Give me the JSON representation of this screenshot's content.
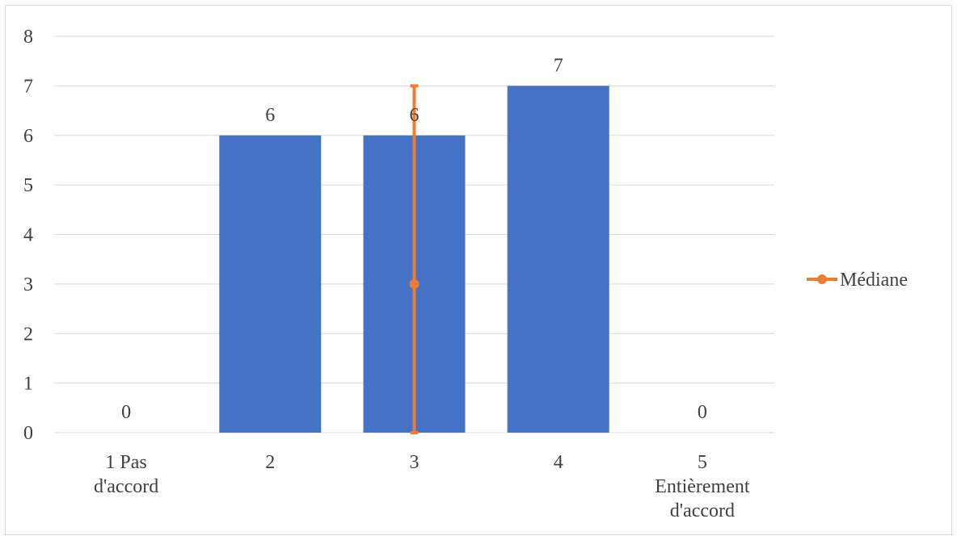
{
  "chart_data": {
    "type": "bar",
    "categories": [
      "1 Pas d'accord",
      "2",
      "3",
      "4",
      "5 Entièrement d'accord"
    ],
    "category_label_lines": [
      [
        "1 Pas",
        "d'accord"
      ],
      [
        "2"
      ],
      [
        "3"
      ],
      [
        "4"
      ],
      [
        "5",
        "Entièrement",
        "d'accord"
      ]
    ],
    "values": [
      0,
      6,
      6,
      7,
      0
    ],
    "data_labels": [
      "0",
      "6",
      "6",
      "7",
      "0"
    ],
    "bar_color": "#4472c4",
    "ylim": [
      0,
      8
    ],
    "yticks": [
      0,
      1,
      2,
      3,
      4,
      5,
      6,
      7,
      8
    ],
    "grid": true,
    "median_series": {
      "name": "Médiane",
      "color": "#ed7d31",
      "category": "3",
      "value": 3,
      "error_range": [
        0,
        7
      ]
    },
    "legend": {
      "position": "right",
      "entries": [
        "Médiane"
      ]
    }
  }
}
